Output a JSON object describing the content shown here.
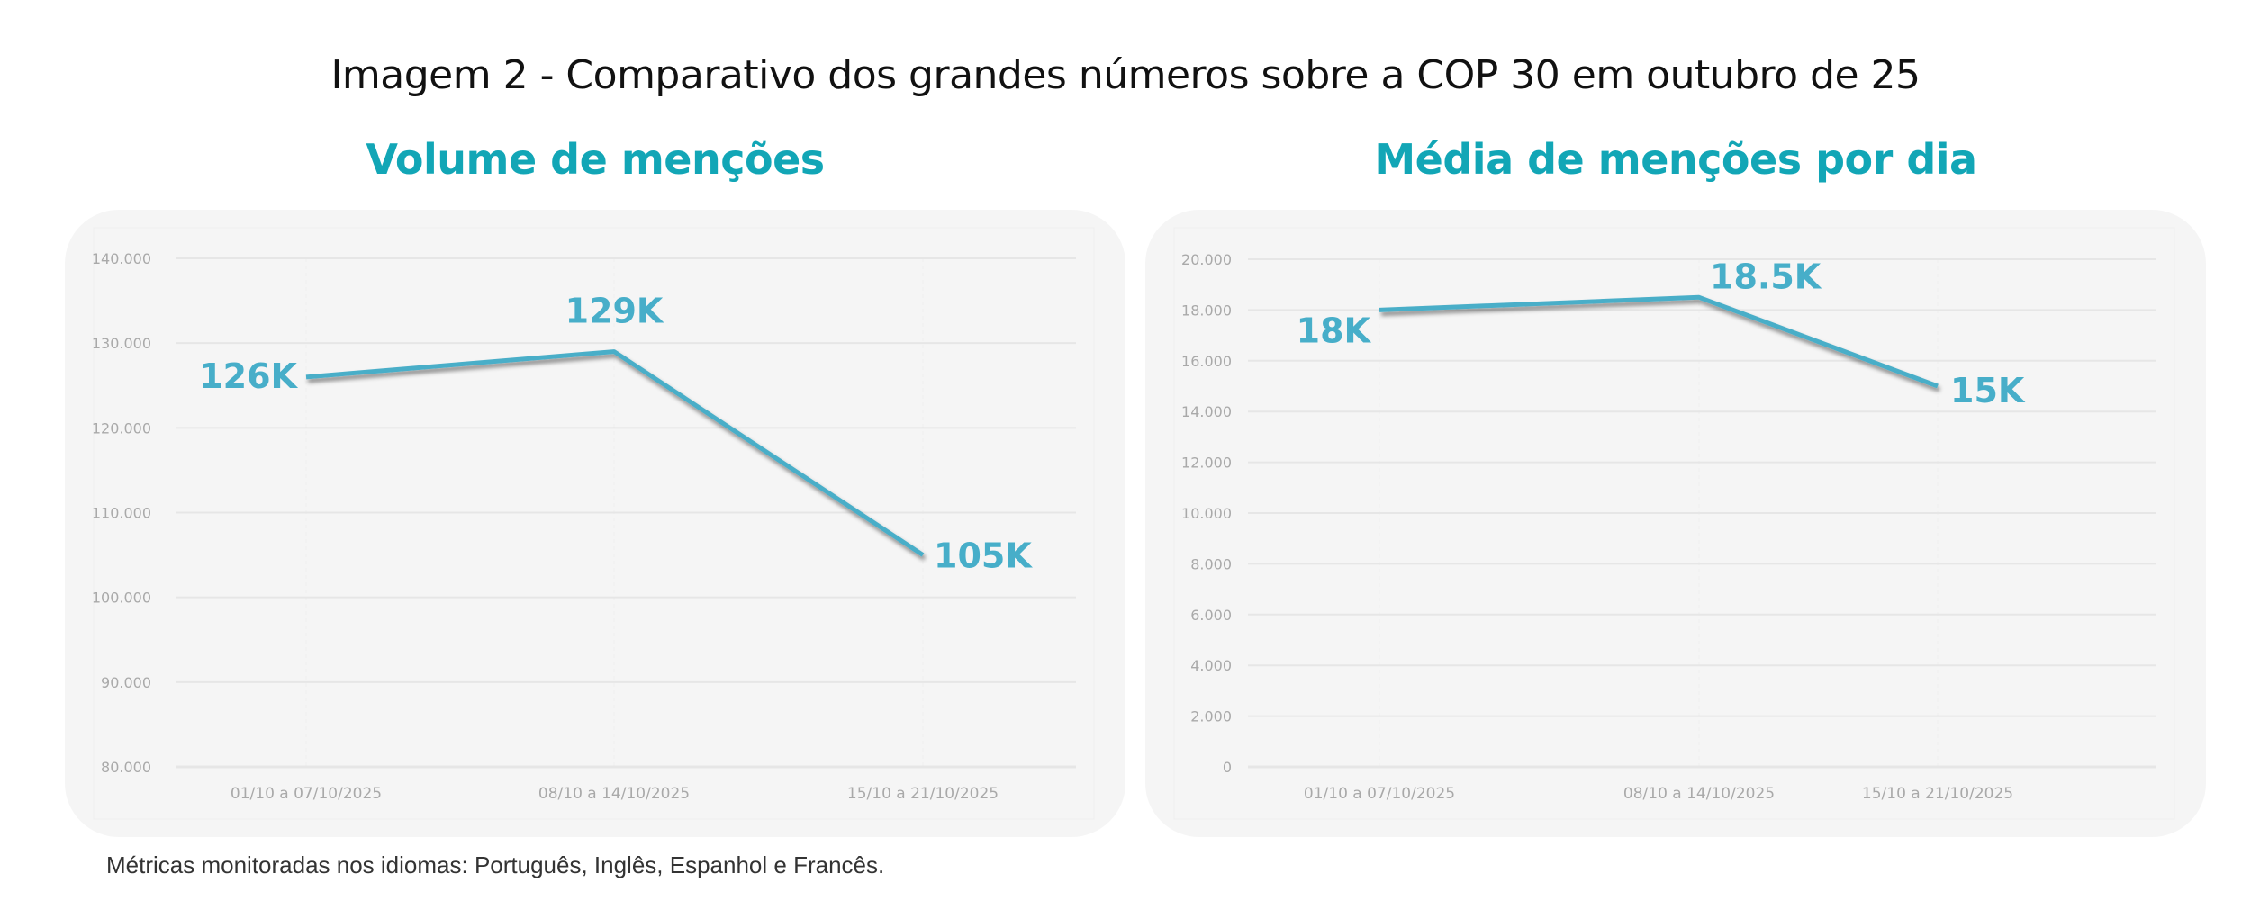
{
  "page": {
    "title": "Imagem 2 - Comparativo dos grandes números sobre a COP 30  em outubro de 25",
    "footnote": "Métricas monitoradas nos idiomas: Português, Inglês, Espanhol e Francês."
  },
  "colors": {
    "title_accent": "#12a6b6",
    "line": "#4aaec8",
    "card_bg": "#f5f5f5",
    "grid": "#e6e6e6",
    "tick_text": "#a9a9a9"
  },
  "chart_data": [
    {
      "type": "line",
      "title": "Volume de menções",
      "xlabel": "",
      "ylabel": "",
      "categories": [
        "01/10 a 07/10/2025",
        "08/10 a 14/10/2025",
        "15/10 a 21/10/2025"
      ],
      "series": [
        {
          "name": "Volume de menções",
          "values": [
            126000,
            129000,
            105000
          ],
          "labels": [
            "126K",
            "129K",
            "105K"
          ]
        }
      ],
      "ylim": [
        80000,
        140000
      ],
      "yticks": [
        80000,
        90000,
        100000,
        110000,
        120000,
        130000,
        140000
      ],
      "ytick_labels": [
        "80.000",
        "90.000",
        "100.000",
        "110.000",
        "120.000",
        "130.000",
        "140.000"
      ],
      "grid": true,
      "legend": "none"
    },
    {
      "type": "line",
      "title": "Média de menções por dia",
      "xlabel": "",
      "ylabel": "",
      "categories": [
        "01/10 a 07/10/2025",
        "08/10 a 14/10/2025",
        "15/10 a 21/10/2025"
      ],
      "series": [
        {
          "name": "Média de menções por dia",
          "values": [
            18000,
            18500,
            15000
          ],
          "labels": [
            "18K",
            "18.5K",
            "15K"
          ]
        }
      ],
      "ylim": [
        0,
        20000
      ],
      "yticks": [
        0,
        2000,
        4000,
        6000,
        8000,
        10000,
        12000,
        14000,
        16000,
        18000,
        20000
      ],
      "ytick_labels": [
        "0",
        "2.000",
        "4.000",
        "6.000",
        "8.000",
        "10.000",
        "12.000",
        "14.000",
        "16.000",
        "18.000",
        "20.000"
      ],
      "grid": true,
      "legend": "none"
    }
  ]
}
